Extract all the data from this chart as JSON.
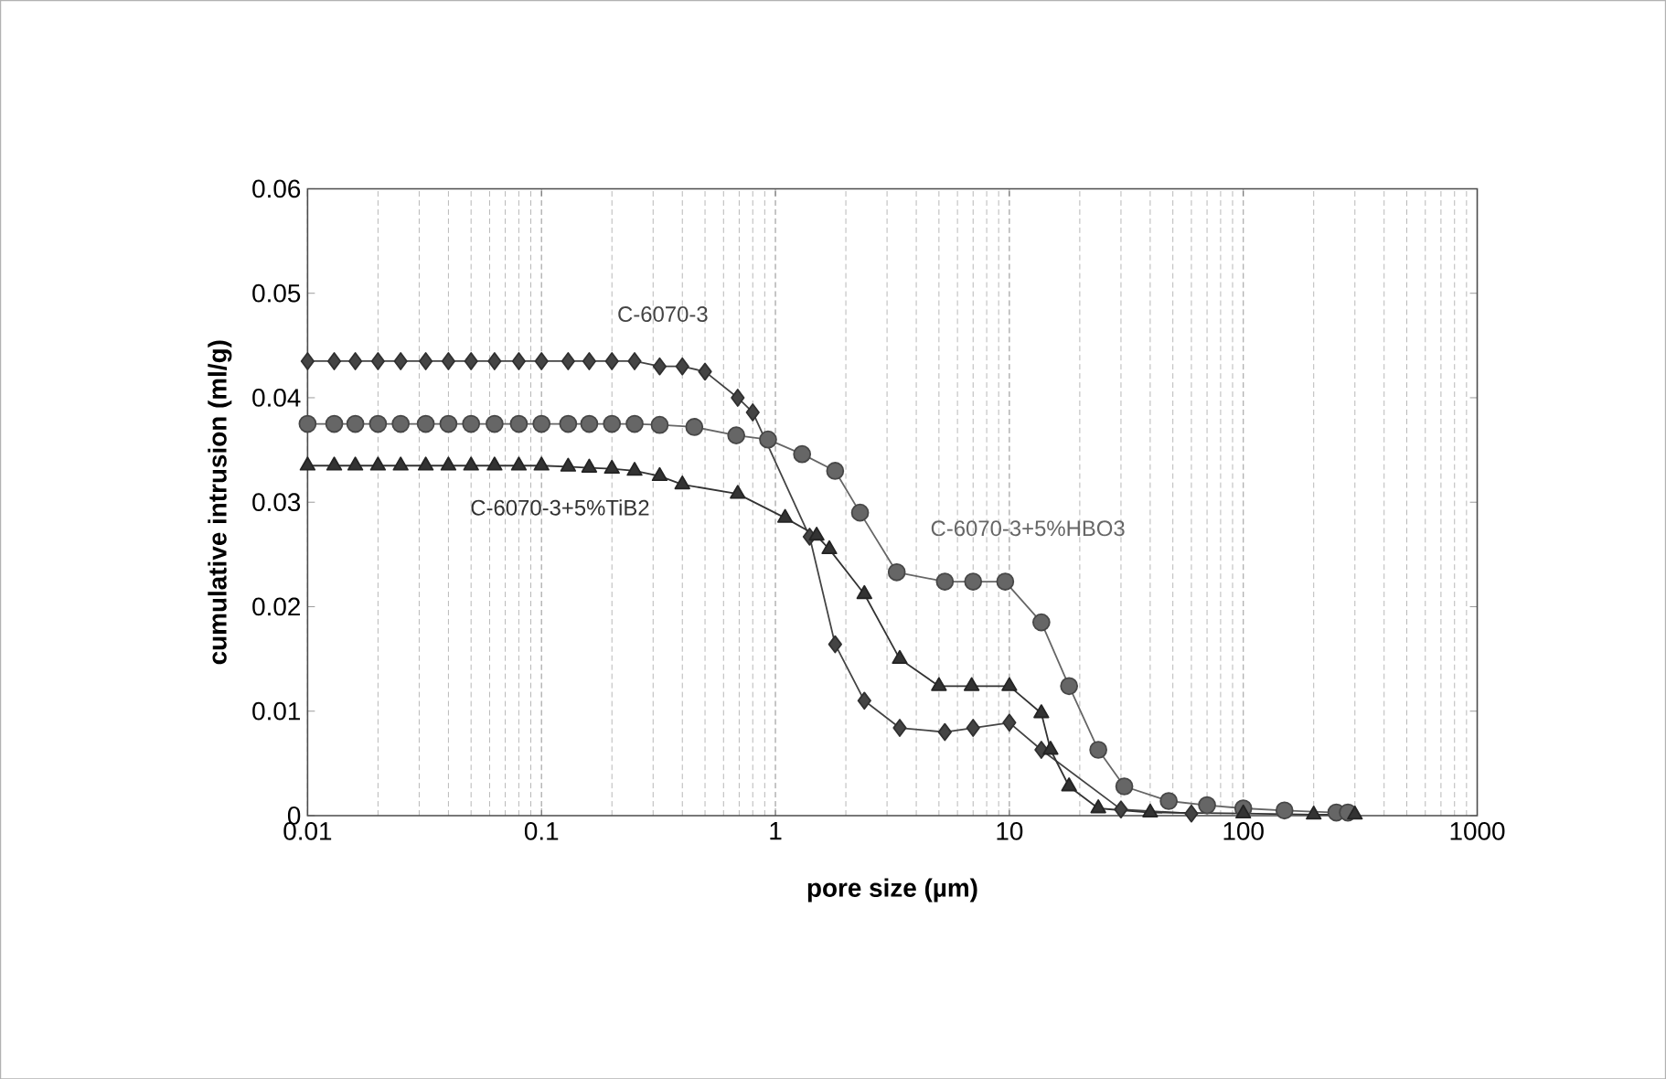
{
  "chart_data": {
    "type": "line",
    "xlabel": "pore size (µm)",
    "ylabel": "cumulative intrusion (ml/g)",
    "log": "x",
    "grid": "x",
    "xlim": [
      0.01,
      1000
    ],
    "xticks": [
      0.01,
      0.1,
      1,
      10,
      100,
      1000
    ],
    "ylim": [
      0,
      0.06
    ],
    "yticks": [
      0,
      0.01,
      0.02,
      0.03,
      0.04,
      0.05,
      0.06
    ],
    "series": [
      {
        "name": "C-6070-3",
        "color": "#444444",
        "marker": "diamond",
        "x": [
          0.01,
          0.013,
          0.016,
          0.02,
          0.025,
          0.032,
          0.04,
          0.05,
          0.063,
          0.08,
          0.1,
          0.13,
          0.16,
          0.2,
          0.25,
          0.32,
          0.4,
          0.5,
          0.69,
          0.8,
          1.4,
          1.8,
          2.4,
          3.4,
          5.3,
          7,
          10,
          13.7,
          18,
          24,
          30,
          40,
          60
        ],
        "values": [
          0.0435,
          0.0435,
          0.0435,
          0.0435,
          0.0435,
          0.0435,
          0.0435,
          0.0435,
          0.0435,
          0.0435,
          0.0435,
          0.0435,
          0.0435,
          0.0435,
          0.0435,
          0.043,
          0.043,
          0.0425,
          0.04,
          0.0386,
          0.0267,
          0.0164,
          0.011,
          0.0084,
          0.008,
          0.0084,
          0.0089,
          0.0063,
          null,
          null,
          0.0006,
          null,
          0.0002
        ]
      },
      {
        "name": "C-6070-3+5%HBO3",
        "color": "#666666",
        "marker": "circle",
        "x": [
          0.01,
          0.013,
          0.016,
          0.02,
          0.025,
          0.032,
          0.04,
          0.05,
          0.063,
          0.08,
          0.1,
          0.13,
          0.16,
          0.2,
          0.25,
          0.32,
          0.45,
          0.68,
          0.93,
          1.3,
          1.8,
          2.3,
          3.3,
          5.3,
          7,
          9.6,
          13.7,
          18,
          24,
          31,
          48,
          70,
          100,
          150,
          250,
          280
        ],
        "values": [
          0.0375,
          0.0375,
          0.0375,
          0.0375,
          0.0375,
          0.0375,
          0.0375,
          0.0375,
          0.0375,
          0.0375,
          0.0375,
          0.0375,
          0.0375,
          0.0375,
          0.0375,
          0.0374,
          0.0372,
          0.0364,
          0.036,
          0.0346,
          0.033,
          0.029,
          0.0233,
          0.0224,
          0.0224,
          0.0224,
          0.0185,
          0.0124,
          0.0063,
          0.0028,
          0.0014,
          0.001,
          0.0007,
          0.0005,
          0.0003,
          0.0003
        ]
      },
      {
        "name": "C-6070-3+5%TiB2",
        "color": "#333333",
        "marker": "triangle",
        "x": [
          0.01,
          0.013,
          0.016,
          0.02,
          0.025,
          0.032,
          0.04,
          0.05,
          0.063,
          0.08,
          0.1,
          0.13,
          0.16,
          0.2,
          0.25,
          0.32,
          0.4,
          0.69,
          1.1,
          1.5,
          1.7,
          2.4,
          3.4,
          5,
          6.9,
          10,
          13.7,
          15,
          18,
          24,
          40,
          100,
          200,
          300
        ],
        "values": [
          0.0335,
          0.0335,
          0.0335,
          0.0335,
          0.0335,
          0.0335,
          0.0335,
          0.0335,
          0.0335,
          0.0335,
          0.0335,
          0.0334,
          0.0333,
          0.0332,
          0.033,
          0.0325,
          0.0317,
          0.0308,
          0.0285,
          0.0268,
          0.0255,
          0.0212,
          0.015,
          0.0124,
          0.0124,
          0.0124,
          0.0098,
          0.0063,
          0.0028,
          0.0007,
          0.0003,
          0.0002,
          0.0001,
          0.0001
        ]
      }
    ]
  }
}
